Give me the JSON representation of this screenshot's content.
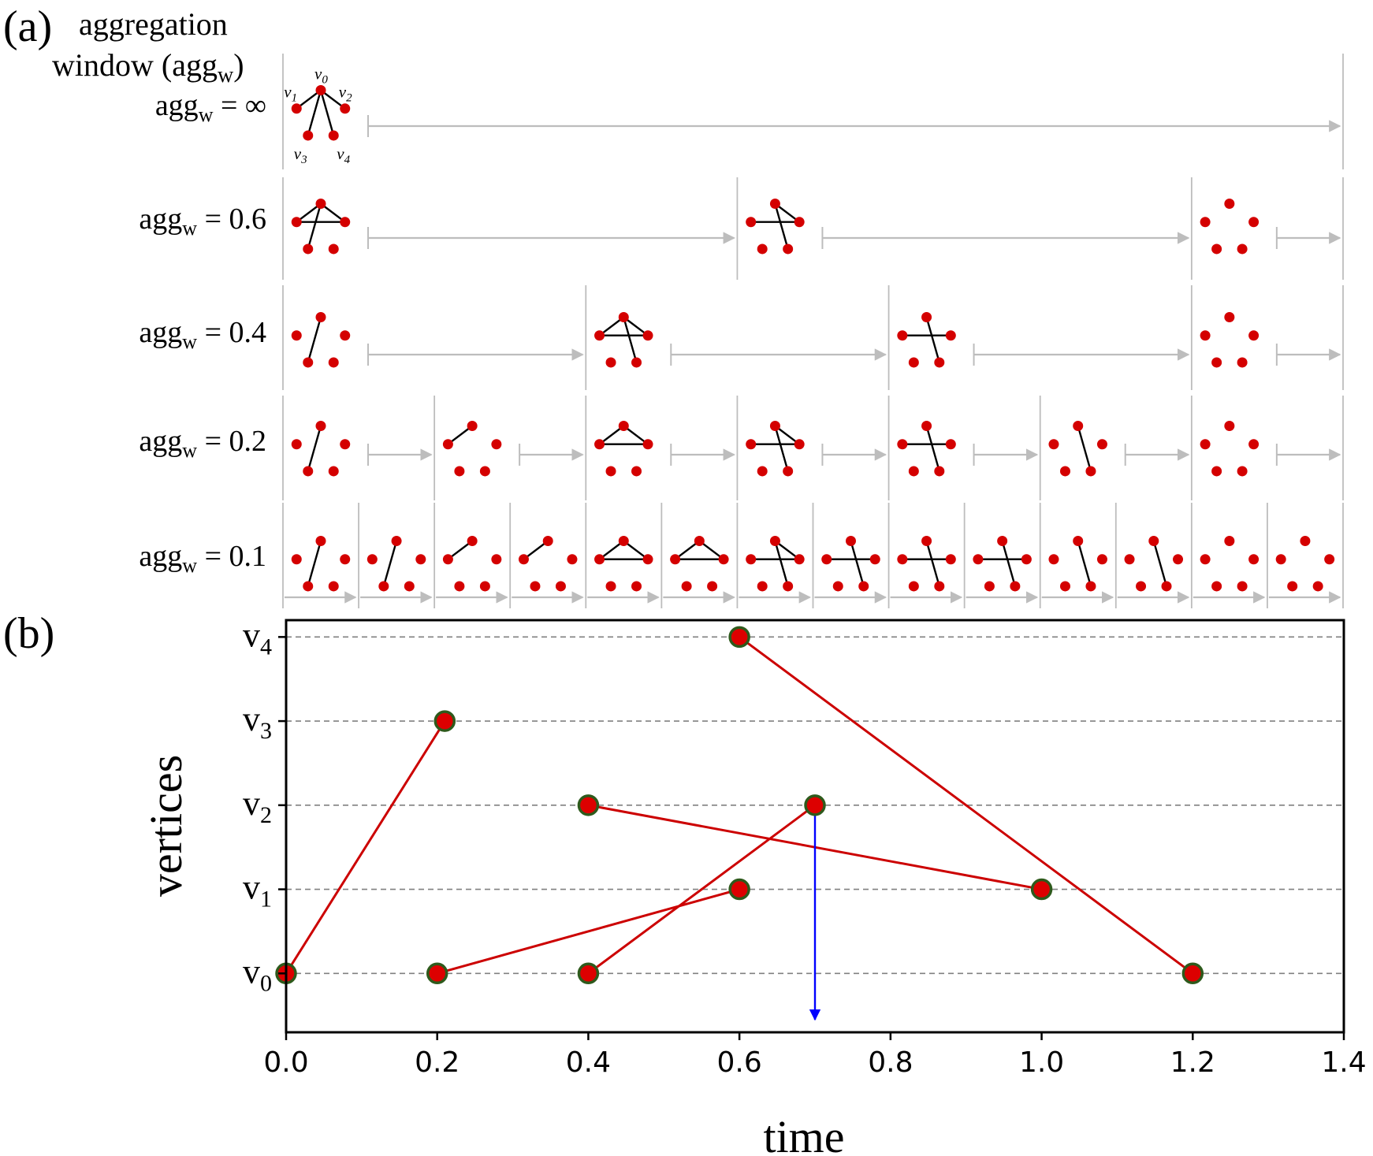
{
  "panel_a": {
    "label": "(a)",
    "header_line1": "aggregation",
    "header_line2_prefix": "window (agg",
    "header_line2_sub": "w",
    "header_line2_suffix": ")",
    "row_label_base": "agg",
    "row_label_sub": "w",
    "node_labels": [
      "v",
      "v",
      "v",
      "v",
      "v"
    ],
    "node_label_subs": [
      "0",
      "1",
      "2",
      "3",
      "4"
    ],
    "time_range": [
      0,
      1.4
    ],
    "rows": [
      {
        "value_text": " = ∞",
        "windows": [
          {
            "start": 0.0,
            "edges": [
              [
                0,
                1
              ],
              [
                0,
                2
              ],
              [
                0,
                3
              ],
              [
                0,
                4
              ]
            ]
          }
        ]
      },
      {
        "value_text": " = 0.6",
        "windows": [
          {
            "start": 0.0,
            "edges": [
              [
                0,
                1
              ],
              [
                0,
                2
              ],
              [
                1,
                2
              ],
              [
                0,
                3
              ]
            ]
          },
          {
            "start": 0.6,
            "edges": [
              [
                0,
                2
              ],
              [
                1,
                2
              ],
              [
                0,
                4
              ]
            ]
          },
          {
            "start": 1.2,
            "edges": []
          }
        ]
      },
      {
        "value_text": " = 0.4",
        "windows": [
          {
            "start": 0.0,
            "edges": [
              [
                0,
                3
              ]
            ]
          },
          {
            "start": 0.4,
            "edges": [
              [
                0,
                1
              ],
              [
                0,
                2
              ],
              [
                1,
                2
              ],
              [
                0,
                4
              ]
            ]
          },
          {
            "start": 0.8,
            "edges": [
              [
                1,
                2
              ],
              [
                0,
                4
              ]
            ]
          },
          {
            "start": 1.2,
            "edges": []
          }
        ]
      },
      {
        "value_text": " = 0.2",
        "windows": [
          {
            "start": 0.0,
            "edges": [
              [
                0,
                3
              ]
            ]
          },
          {
            "start": 0.2,
            "edges": [
              [
                0,
                1
              ]
            ]
          },
          {
            "start": 0.4,
            "edges": [
              [
                0,
                1
              ],
              [
                0,
                2
              ],
              [
                1,
                2
              ]
            ]
          },
          {
            "start": 0.6,
            "edges": [
              [
                0,
                2
              ],
              [
                1,
                2
              ],
              [
                0,
                4
              ]
            ]
          },
          {
            "start": 0.8,
            "edges": [
              [
                1,
                2
              ],
              [
                0,
                4
              ]
            ]
          },
          {
            "start": 1.0,
            "edges": [
              [
                0,
                4
              ]
            ]
          },
          {
            "start": 1.2,
            "edges": []
          }
        ]
      },
      {
        "value_text": " = 0.1",
        "windows": [
          {
            "start": 0.0,
            "edges": [
              [
                0,
                3
              ]
            ]
          },
          {
            "start": 0.1,
            "edges": [
              [
                0,
                3
              ]
            ]
          },
          {
            "start": 0.2,
            "edges": [
              [
                0,
                1
              ]
            ]
          },
          {
            "start": 0.3,
            "edges": [
              [
                0,
                1
              ]
            ]
          },
          {
            "start": 0.4,
            "edges": [
              [
                0,
                1
              ],
              [
                0,
                2
              ],
              [
                1,
                2
              ]
            ]
          },
          {
            "start": 0.5,
            "edges": [
              [
                0,
                1
              ],
              [
                0,
                2
              ],
              [
                1,
                2
              ]
            ]
          },
          {
            "start": 0.6,
            "edges": [
              [
                0,
                2
              ],
              [
                1,
                2
              ],
              [
                0,
                4
              ]
            ]
          },
          {
            "start": 0.7,
            "edges": [
              [
                1,
                2
              ],
              [
                0,
                4
              ]
            ]
          },
          {
            "start": 0.8,
            "edges": [
              [
                1,
                2
              ],
              [
                0,
                4
              ]
            ]
          },
          {
            "start": 0.9,
            "edges": [
              [
                1,
                2
              ],
              [
                0,
                4
              ]
            ]
          },
          {
            "start": 1.0,
            "edges": [
              [
                0,
                4
              ]
            ]
          },
          {
            "start": 1.1,
            "edges": [
              [
                0,
                4
              ]
            ]
          },
          {
            "start": 1.2,
            "edges": []
          },
          {
            "start": 1.3,
            "edges": []
          }
        ]
      }
    ],
    "colors": {
      "node": "#d40000",
      "edge": "#000000",
      "timeline": "#bdbdbd"
    }
  },
  "panel_b": {
    "label": "(b)",
    "chart_data": {
      "type": "line",
      "xlabel": "time",
      "ylabel": "vertices",
      "xlim": [
        0.0,
        1.4
      ],
      "ylim": [
        -0.7,
        4.2
      ],
      "xticks": [
        "0.0",
        "0.2",
        "0.4",
        "0.6",
        "0.8",
        "1.0",
        "1.2",
        "1.4"
      ],
      "ytick_base": "v",
      "yticks": [
        "0",
        "1",
        "2",
        "3",
        "4"
      ],
      "grid": "dashed horizontal at vertex levels",
      "contacts": [
        {
          "from": {
            "t": 0.0,
            "v": 0
          },
          "to": {
            "t": 0.21,
            "v": 3
          }
        },
        {
          "from": {
            "t": 0.2,
            "v": 0
          },
          "to": {
            "t": 0.6,
            "v": 1
          }
        },
        {
          "from": {
            "t": 0.4,
            "v": 0
          },
          "to": {
            "t": 0.7,
            "v": 2
          }
        },
        {
          "from": {
            "t": 0.4,
            "v": 2
          },
          "to": {
            "t": 1.0,
            "v": 1
          }
        },
        {
          "from": {
            "t": 0.6,
            "v": 4
          },
          "to": {
            "t": 1.2,
            "v": 0
          }
        }
      ],
      "marker": {
        "t": 0.7,
        "from_v": 2,
        "to_v": -0.55
      },
      "colors": {
        "contact": "#cc0000",
        "node_fill": "#dd0000",
        "node_edge": "#2e5a1c",
        "marker": "#0000ff",
        "grid": "#808080"
      }
    }
  }
}
